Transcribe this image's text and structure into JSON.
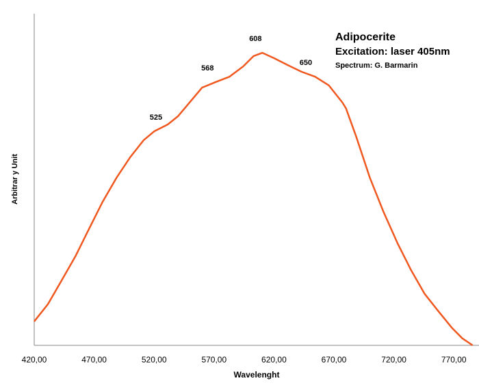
{
  "chart_data": {
    "type": "line",
    "title": "Adipocerite",
    "subtitle": "Excitation:  laser 405nm",
    "credit": "Spectrum: G. Barmarin",
    "xlabel": "Wavelenght",
    "ylabel": "Arbitrar y Unit",
    "xlim": [
      420,
      791
    ],
    "ylim": [
      0,
      100
    ],
    "xticks": [
      {
        "value": 420,
        "label": "420,00"
      },
      {
        "value": 470,
        "label": "470,00"
      },
      {
        "value": 520,
        "label": "520,00"
      },
      {
        "value": 570,
        "label": "570,00"
      },
      {
        "value": 620,
        "label": "620,00"
      },
      {
        "value": 670,
        "label": "670,00"
      },
      {
        "value": 720,
        "label": "720,00"
      },
      {
        "value": 770,
        "label": "770,00"
      }
    ],
    "peak_labels": [
      525,
      568,
      608,
      650
    ],
    "x": [
      420,
      431.4,
      442.9,
      454.3,
      465.7,
      477.1,
      488.6,
      500,
      511.4,
      520,
      531.4,
      540,
      548.6,
      560,
      571.4,
      582.9,
      594.3,
      602.9,
      610.3,
      620,
      631.4,
      642.9,
      654.3,
      665.7,
      677.1,
      680,
      688.6,
      700,
      711.4,
      722.9,
      734.3,
      745.7,
      757.1,
      768.6,
      777.1,
      785.7
    ],
    "series": [
      {
        "color": "#f0581f",
        "values": [
          7.2,
          12.4,
          19.6,
          26.8,
          35.1,
          43.3,
          50.5,
          56.7,
          61.9,
          64.5,
          66.6,
          69.1,
          72.8,
          77.7,
          79.4,
          81.0,
          84.1,
          87.2,
          88.2,
          86.6,
          84.5,
          82.5,
          81.0,
          78.4,
          73.2,
          71.5,
          62.9,
          50.5,
          40.2,
          30.9,
          22.7,
          15.5,
          10.3,
          5.2,
          2.1,
          0
        ]
      }
    ]
  }
}
